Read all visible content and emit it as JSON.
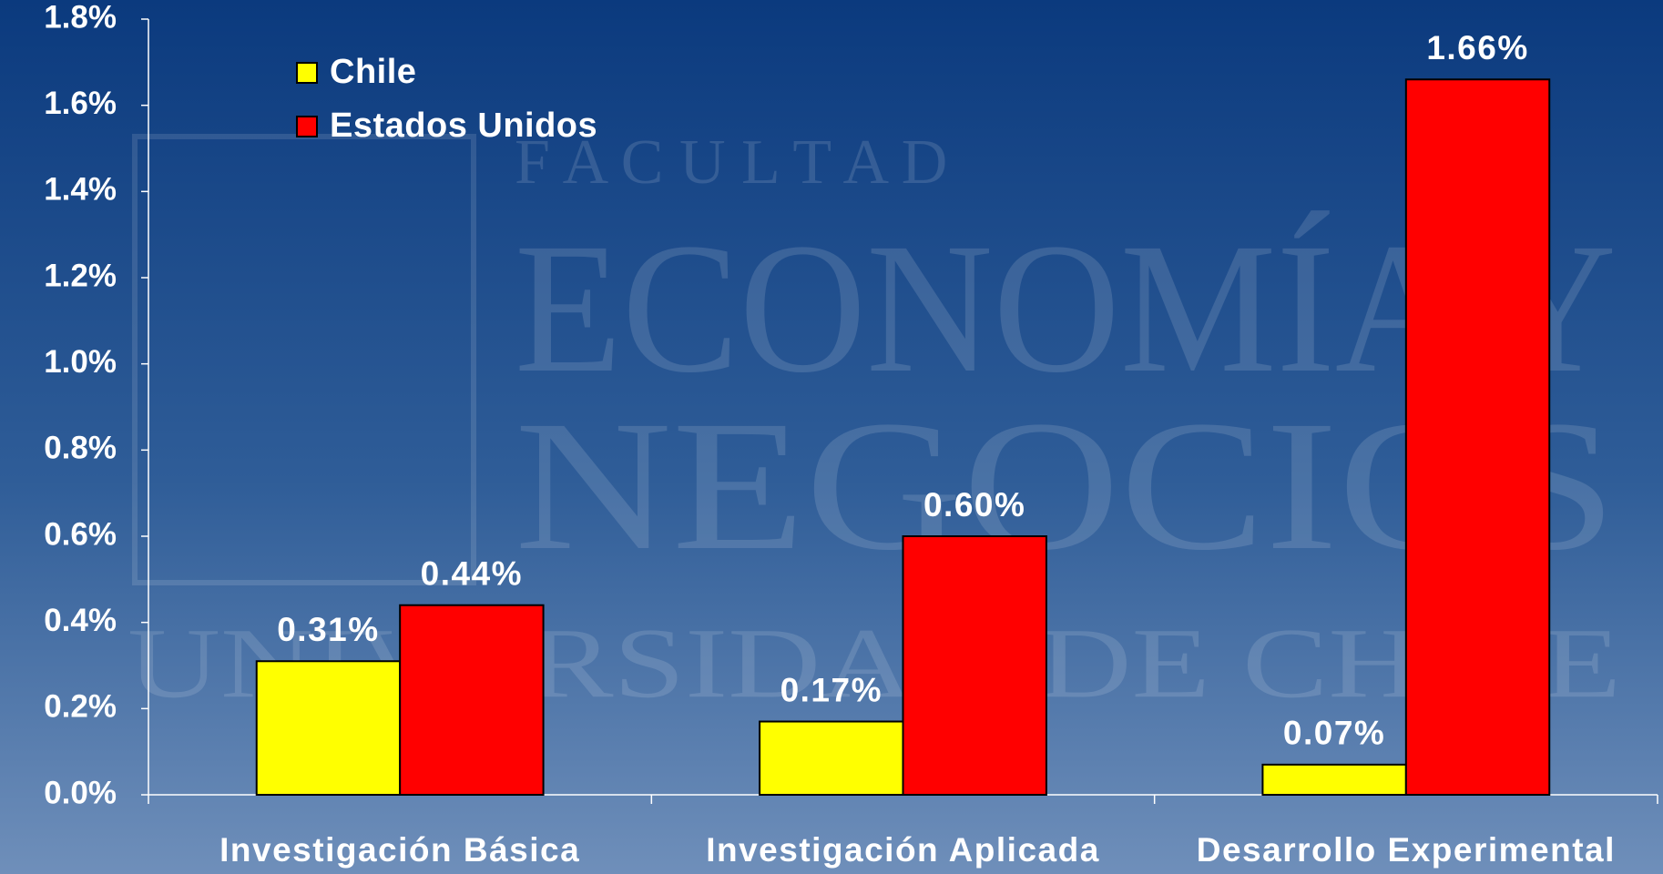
{
  "chart_data": {
    "type": "bar",
    "watermark": [
      "F A C U L T A D",
      "ECONOMÍA Y",
      "NEGOCIOS",
      "UNIVERSIDAD DE CHILE"
    ],
    "categories": [
      "Investigación Básica",
      "Investigación Aplicada",
      "Desarrollo Experimental"
    ],
    "series": [
      {
        "name": "Chile",
        "color": "#ffff00",
        "values": [
          0.31,
          0.17,
          0.07
        ],
        "value_labels": [
          "0.31%",
          "0.17%",
          "0.07%"
        ]
      },
      {
        "name": "Estados Unidos",
        "color": "#ff0000",
        "values": [
          0.44,
          0.6,
          1.66
        ],
        "value_labels": [
          "0.44%",
          "0.60%",
          "1.66%"
        ]
      }
    ],
    "ylim": [
      0,
      1.8
    ],
    "yticks": [
      {
        "value": 0,
        "label": "0.0%"
      },
      {
        "value": 0.2,
        "label": "0.2%"
      },
      {
        "value": 0.4,
        "label": "0.4%"
      },
      {
        "value": 0.6,
        "label": "0.6%"
      },
      {
        "value": 0.8,
        "label": "0.8%"
      },
      {
        "value": 1.0,
        "label": "1.0%"
      },
      {
        "value": 1.2,
        "label": "1.2%"
      },
      {
        "value": 1.4,
        "label": "1.4%"
      },
      {
        "value": 1.6,
        "label": "1.6%"
      },
      {
        "value": 1.8,
        "label": "1.8%"
      }
    ],
    "legend": "upper-left",
    "grid": false
  }
}
